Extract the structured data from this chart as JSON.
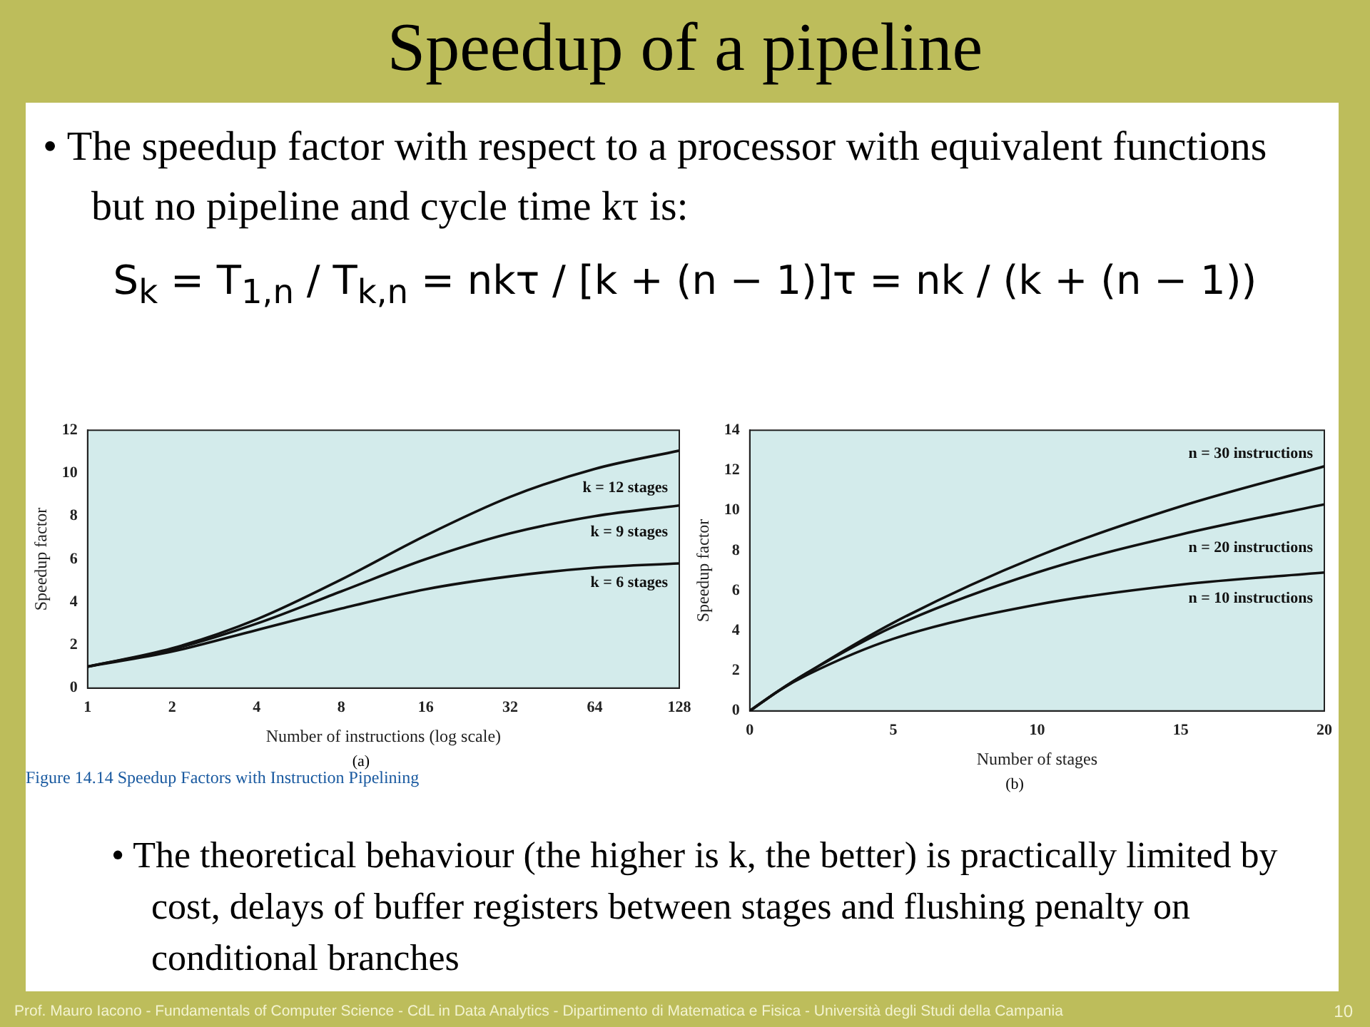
{
  "chart_data": [
    {
      "type": "other",
      "title": "Speedup of a pipeline",
      "annotations": [
        "• The speedup factor with respect to a processor with equivalent functions but no pipeline and cycle time kτ is:",
        "S$_{k}$ = T$_{1,n}$ / T$_{k,n}$ = nkτ / [k + (n − 1)]τ = nk / (k + (n − 1))",
        "• The theoretical behaviour (the higher is k, the better) is practically limited by cost, delays of buffer registers between stages and flushing penalty on conditional branches",
        "Prof. Mauro Iacono - Fundamentals of Computer Science - CdL in Data Analytics - Dipartimento di Matematica e Fisica - Università degli Studi della Campania",
        "10"
      ]
    },
    {
      "type": "line",
      "x": [
        1,
        2,
        4,
        8,
        16,
        32,
        64,
        128
      ],
      "log": "x",
      "xlabel": "Number of instructions (log scale)",
      "ylabel": "Speedup factor",
      "xlim": [
        1,
        128
      ],
      "xticks": [
        1,
        2,
        4,
        8,
        16,
        32,
        64,
        128
      ],
      "ylim": [
        0,
        12
      ],
      "yticks": [
        0,
        2,
        4,
        6,
        8,
        10,
        12
      ],
      "legend": false,
      "grid": false,
      "marker": "none",
      "annotations": [
        "(a)",
        "Figure 14.14 Speedup Factors with Instruction Pipelining"
      ],
      "series": [
        {
          "name": "k = 12 stages",
          "color": "#111111",
          "values": [
            1,
            1.85,
            3.2,
            5.05,
            7.1,
            8.9,
            10.2,
            11.05
          ]
        },
        {
          "name": "k = 9 stages",
          "color": "#111111",
          "values": [
            1,
            1.8,
            3,
            4.5,
            6,
            7.2,
            8,
            8.5
          ]
        },
        {
          "name": "k = 6 stages",
          "color": "#111111",
          "values": [
            1,
            1.7,
            2.7,
            3.7,
            4.6,
            5.2,
            5.6,
            5.8
          ]
        }
      ]
    },
    {
      "type": "line",
      "x": [
        0,
        1,
        2,
        5,
        10,
        15,
        20
      ],
      "xlabel": "Number of stages",
      "ylabel": "Speedup factor",
      "xlim": [
        0,
        20
      ],
      "xticks": [
        0,
        5,
        10,
        15,
        20
      ],
      "ylim": [
        0,
        14
      ],
      "yticks": [
        0,
        2,
        4,
        6,
        8,
        10,
        12,
        14
      ],
      "legend": false,
      "grid": false,
      "marker": "none",
      "annotations": [
        "(b)"
      ],
      "series": [
        {
          "name": "n = 30 instructions",
          "color": "#111111",
          "values": [
            0,
            1,
            1.9,
            4.4,
            7.7,
            10.2,
            12.2
          ]
        },
        {
          "name": "n = 20 instructions",
          "color": "#111111",
          "values": [
            0,
            1,
            1.9,
            4.2,
            6.9,
            8.8,
            10.3
          ]
        },
        {
          "name": "n = 10 instructions",
          "color": "#111111",
          "values": [
            0,
            1,
            1.8,
            3.6,
            5.3,
            6.3,
            6.9
          ]
        }
      ]
    }
  ]
}
